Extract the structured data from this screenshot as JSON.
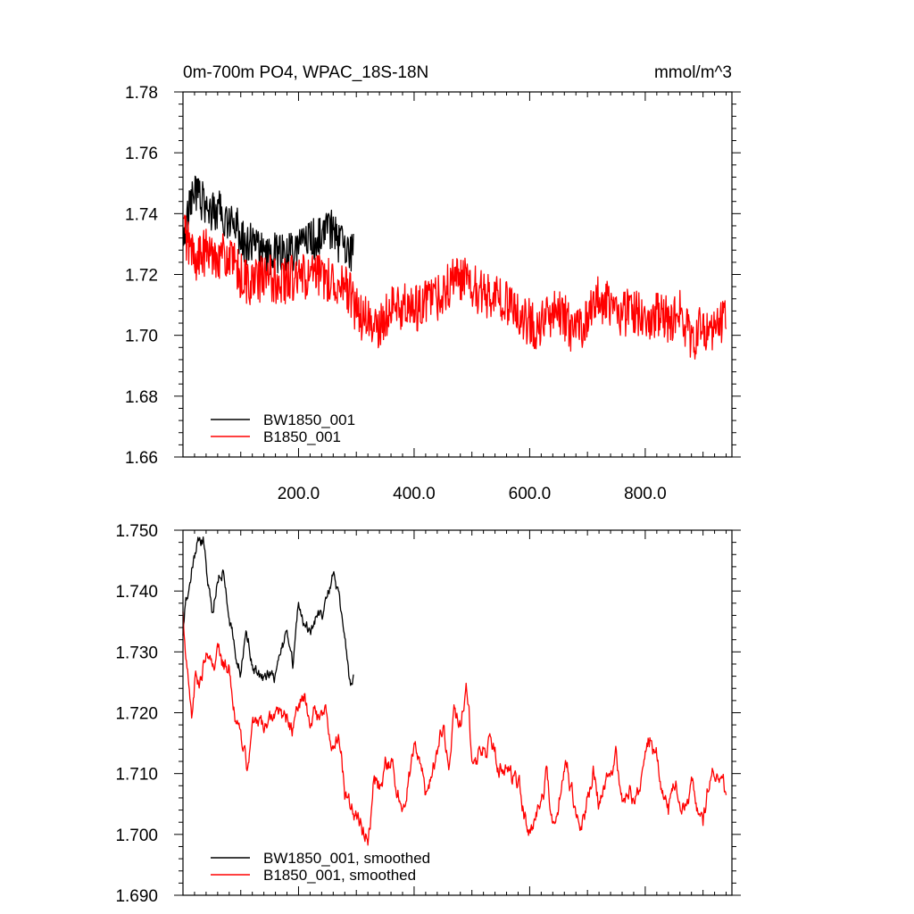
{
  "chart_data": [
    {
      "type": "line",
      "title_left": "0m-700m PO4, WPAC_18S-18N",
      "title_right": "mmol/m^3",
      "xlim": [
        0,
        950
      ],
      "ylim": [
        1.66,
        1.78
      ],
      "yticks": [
        1.66,
        1.68,
        1.7,
        1.72,
        1.74,
        1.76,
        1.78
      ],
      "yticklabels": [
        "1.66",
        "1.68",
        "1.70",
        "1.72",
        "1.74",
        "1.76",
        "1.78"
      ],
      "xticks": [
        200,
        400,
        600,
        800
      ],
      "xticklabels": [
        "200.0",
        "400.0",
        "600.0",
        "800.0"
      ],
      "legend_position": "bottom-left",
      "series": [
        {
          "name": "BW1850_001",
          "color": "#000000",
          "noise": 0.007,
          "x": [
            0,
            10,
            20,
            30,
            40,
            50,
            60,
            70,
            80,
            90,
            100,
            110,
            120,
            130,
            140,
            150,
            160,
            170,
            180,
            190,
            200,
            210,
            220,
            230,
            240,
            250,
            260,
            270,
            280,
            290,
            295
          ],
          "y": [
            1.728,
            1.742,
            1.747,
            1.745,
            1.742,
            1.74,
            1.741,
            1.74,
            1.737,
            1.738,
            1.732,
            1.73,
            1.731,
            1.728,
            1.727,
            1.726,
            1.727,
            1.726,
            1.728,
            1.727,
            1.73,
            1.732,
            1.731,
            1.732,
            1.733,
            1.734,
            1.735,
            1.73,
            1.728,
            1.727,
            1.727
          ]
        },
        {
          "name": "B1850_001",
          "color": "#ff0000",
          "noise": 0.008,
          "x": [
            0,
            10,
            20,
            40,
            60,
            80,
            100,
            120,
            140,
            160,
            180,
            200,
            220,
            240,
            260,
            280,
            300,
            320,
            340,
            360,
            380,
            400,
            420,
            440,
            460,
            480,
            500,
            520,
            540,
            560,
            580,
            600,
            620,
            640,
            660,
            680,
            700,
            720,
            740,
            760,
            780,
            800,
            820,
            840,
            860,
            880,
            900,
            920,
            940
          ],
          "y": [
            1.736,
            1.73,
            1.725,
            1.727,
            1.727,
            1.725,
            1.719,
            1.717,
            1.719,
            1.718,
            1.718,
            1.719,
            1.719,
            1.719,
            1.718,
            1.717,
            1.708,
            1.704,
            1.702,
            1.709,
            1.71,
            1.708,
            1.712,
            1.712,
            1.716,
            1.719,
            1.716,
            1.713,
            1.714,
            1.711,
            1.708,
            1.704,
            1.703,
            1.708,
            1.706,
            1.7,
            1.705,
            1.712,
            1.711,
            1.707,
            1.708,
            1.707,
            1.706,
            1.705,
            1.707,
            1.698,
            1.703,
            1.702,
            1.708
          ]
        }
      ]
    },
    {
      "type": "line",
      "xlim": [
        0,
        950
      ],
      "ylim": [
        1.69,
        1.75
      ],
      "yticks": [
        1.69,
        1.7,
        1.71,
        1.72,
        1.73,
        1.74,
        1.75
      ],
      "yticklabels": [
        "1.690",
        "1.700",
        "1.710",
        "1.720",
        "1.730",
        "1.740",
        "1.750"
      ],
      "xticks": [
        200,
        400,
        600,
        800
      ],
      "legend_position": "bottom-left",
      "series": [
        {
          "name": "BW1850_001, smoothed",
          "color": "#000000",
          "noise": 0.0009,
          "x": [
            0,
            5,
            15,
            25,
            35,
            40,
            45,
            50,
            55,
            60,
            70,
            80,
            90,
            100,
            110,
            120,
            130,
            140,
            150,
            160,
            170,
            180,
            190,
            200,
            210,
            220,
            230,
            240,
            250,
            260,
            270,
            280,
            290,
            295
          ],
          "y": [
            1.733,
            1.738,
            1.744,
            1.749,
            1.748,
            1.744,
            1.74,
            1.737,
            1.74,
            1.742,
            1.745,
            1.738,
            1.73,
            1.727,
            1.733,
            1.729,
            1.726,
            1.725,
            1.728,
            1.727,
            1.73,
            1.733,
            1.728,
            1.737,
            1.734,
            1.733,
            1.736,
            1.735,
            1.738,
            1.742,
            1.74,
            1.733,
            1.724,
            1.726
          ]
        },
        {
          "name": "B1850_001, smoothed",
          "color": "#ff0000",
          "noise": 0.0012,
          "x": [
            0,
            5,
            15,
            20,
            30,
            40,
            50,
            60,
            70,
            80,
            90,
            100,
            110,
            120,
            130,
            140,
            150,
            160,
            170,
            180,
            190,
            200,
            210,
            220,
            230,
            240,
            250,
            260,
            270,
            280,
            290,
            300,
            310,
            320,
            330,
            340,
            350,
            360,
            370,
            380,
            390,
            400,
            410,
            420,
            430,
            440,
            450,
            460,
            470,
            480,
            490,
            500,
            510,
            520,
            530,
            540,
            550,
            560,
            570,
            580,
            590,
            600,
            610,
            620,
            630,
            640,
            650,
            660,
            670,
            680,
            690,
            700,
            710,
            720,
            730,
            740,
            750,
            760,
            770,
            780,
            790,
            800,
            810,
            820,
            830,
            840,
            850,
            860,
            870,
            880,
            890,
            900,
            910,
            920,
            930,
            940
          ],
          "y": [
            1.737,
            1.731,
            1.722,
            1.726,
            1.726,
            1.729,
            1.725,
            1.728,
            1.727,
            1.728,
            1.722,
            1.716,
            1.711,
            1.716,
            1.719,
            1.717,
            1.719,
            1.718,
            1.718,
            1.719,
            1.718,
            1.719,
            1.723,
            1.719,
            1.72,
            1.717,
            1.719,
            1.715,
            1.717,
            1.707,
            1.703,
            1.704,
            1.701,
            1.7,
            1.709,
            1.708,
            1.711,
            1.711,
            1.708,
            1.705,
            1.71,
            1.714,
            1.712,
            1.707,
            1.709,
            1.714,
            1.717,
            1.712,
            1.72,
            1.717,
            1.725,
            1.713,
            1.713,
            1.715,
            1.715,
            1.713,
            1.712,
            1.714,
            1.71,
            1.708,
            1.704,
            1.7,
            1.701,
            1.705,
            1.71,
            1.703,
            1.702,
            1.712,
            1.709,
            1.705,
            1.701,
            1.705,
            1.711,
            1.706,
            1.709,
            1.71,
            1.712,
            1.704,
            1.706,
            1.707,
            1.708,
            1.713,
            1.716,
            1.713,
            1.707,
            1.703,
            1.71,
            1.707,
            1.706,
            1.707,
            1.705,
            1.701,
            1.707,
            1.71,
            1.709,
            1.705
          ]
        }
      ]
    }
  ]
}
